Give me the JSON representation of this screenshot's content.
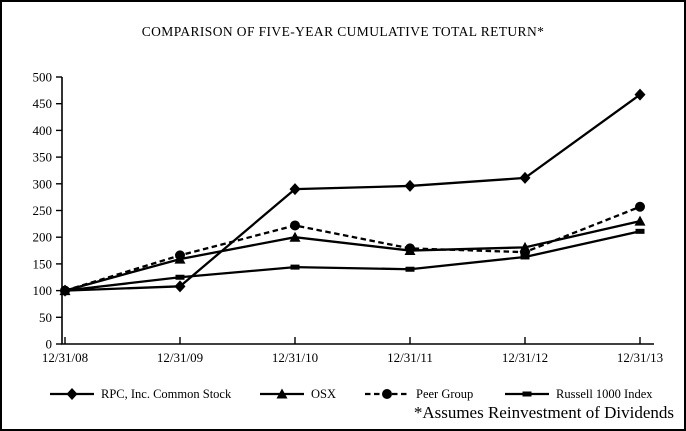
{
  "chart_data": {
    "type": "line",
    "title": "COMPARISON OF FIVE-YEAR CUMULATIVE TOTAL RETURN*",
    "footnote": "*Assumes Reinvestment of Dividends",
    "categories": [
      "12/31/08",
      "12/31/09",
      "12/31/10",
      "12/31/11",
      "12/31/12",
      "12/31/13"
    ],
    "xlabel": "",
    "ylabel": "",
    "ylim": [
      0,
      500
    ],
    "y_ticks": [
      0,
      50,
      100,
      150,
      200,
      250,
      300,
      350,
      400,
      450,
      500
    ],
    "grid": false,
    "legend_position": "bottom",
    "colors": {
      "line": "#000000",
      "background": "#ffffff",
      "border": "#000000"
    },
    "series": [
      {
        "name": "RPC, Inc. Common Stock",
        "marker": "diamond",
        "line": "solid",
        "values": [
          100,
          108,
          290,
          296,
          311,
          467
        ]
      },
      {
        "name": "OSX",
        "marker": "triangle",
        "line": "solid",
        "values": [
          100,
          159,
          200,
          175,
          181,
          230
        ]
      },
      {
        "name": "Peer Group",
        "marker": "circle",
        "line": "dashed",
        "values": [
          100,
          166,
          222,
          179,
          172,
          257
        ]
      },
      {
        "name": "Russell 1000 Index",
        "marker": "square",
        "line": "solid",
        "values": [
          100,
          125,
          144,
          140,
          163,
          211
        ]
      }
    ]
  }
}
